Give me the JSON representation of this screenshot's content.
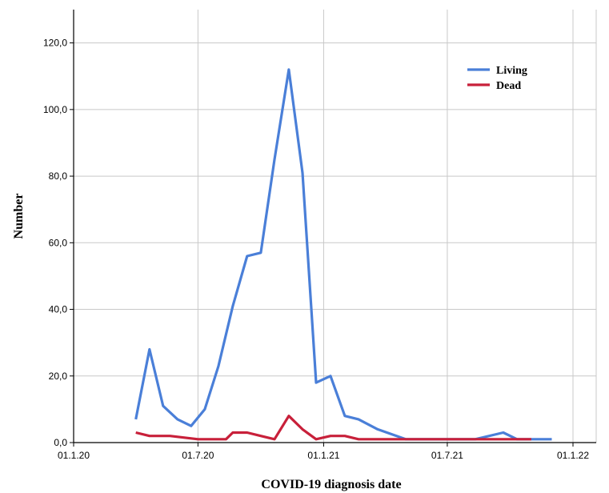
{
  "chart_data": {
    "type": "line",
    "xlabel": "COVID-19 diagnosis date",
    "ylabel": "Number",
    "ylim": [
      0,
      130
    ],
    "grid": true,
    "legend_position": "top-right",
    "y_ticks": [
      "0,0",
      "20,0",
      "40,0",
      "60,0",
      "80,0",
      "100,0",
      "120,0"
    ],
    "x_ticks": [
      "01.1.20",
      "01.7.20",
      "01.1.21",
      "01.7.21",
      "01.1.22"
    ],
    "x": [
      "2020-04-01",
      "2020-05-01",
      "2020-06-01",
      "2020-07-01",
      "2020-08-01",
      "2020-09-01",
      "2020-10-01",
      "2020-11-01",
      "2020-12-01",
      "2021-01-01",
      "2021-02-01",
      "2021-03-01",
      "2021-04-01",
      "2021-05-01",
      "2021-06-01",
      "2021-07-01",
      "2021-08-01",
      "2021-09-01",
      "2021-10-01",
      "2021-11-01",
      "2021-12-01",
      "2022-01-01"
    ],
    "series": [
      {
        "name": "Living",
        "color": "#4a7fd8",
        "points": [
          [
            "2020-04-01",
            7
          ],
          [
            "2020-04-21",
            28
          ],
          [
            "2020-05-11",
            11
          ],
          [
            "2020-06-01",
            7
          ],
          [
            "2020-06-21",
            5
          ],
          [
            "2020-07-11",
            10
          ],
          [
            "2020-07-31",
            23
          ],
          [
            "2020-08-21",
            41
          ],
          [
            "2020-09-11",
            56
          ],
          [
            "2020-10-01",
            57
          ],
          [
            "2020-10-21",
            85
          ],
          [
            "2020-11-11",
            112
          ],
          [
            "2020-12-01",
            81
          ],
          [
            "2020-12-21",
            18
          ],
          [
            "2021-01-11",
            20
          ],
          [
            "2021-02-01",
            8
          ],
          [
            "2021-02-21",
            7
          ],
          [
            "2021-03-21",
            4
          ],
          [
            "2021-05-01",
            1
          ],
          [
            "2021-08-11",
            1
          ],
          [
            "2021-09-21",
            3
          ],
          [
            "2021-10-11",
            1
          ],
          [
            "2021-12-01",
            1
          ]
        ]
      },
      {
        "name": "Dead",
        "color": "#c8203a",
        "points": [
          [
            "2020-04-01",
            3
          ],
          [
            "2020-04-21",
            2
          ],
          [
            "2020-05-21",
            2
          ],
          [
            "2020-07-01",
            1
          ],
          [
            "2020-08-11",
            1
          ],
          [
            "2020-08-21",
            3
          ],
          [
            "2020-09-11",
            3
          ],
          [
            "2020-10-01",
            2
          ],
          [
            "2020-10-21",
            1
          ],
          [
            "2020-11-11",
            8
          ],
          [
            "2020-12-01",
            4
          ],
          [
            "2020-12-21",
            1
          ],
          [
            "2021-01-11",
            2
          ],
          [
            "2021-02-01",
            2
          ],
          [
            "2021-02-21",
            1
          ],
          [
            "2021-05-01",
            1
          ],
          [
            "2021-08-01",
            1
          ],
          [
            "2021-10-01",
            1
          ],
          [
            "2021-11-01",
            1
          ]
        ]
      }
    ]
  }
}
